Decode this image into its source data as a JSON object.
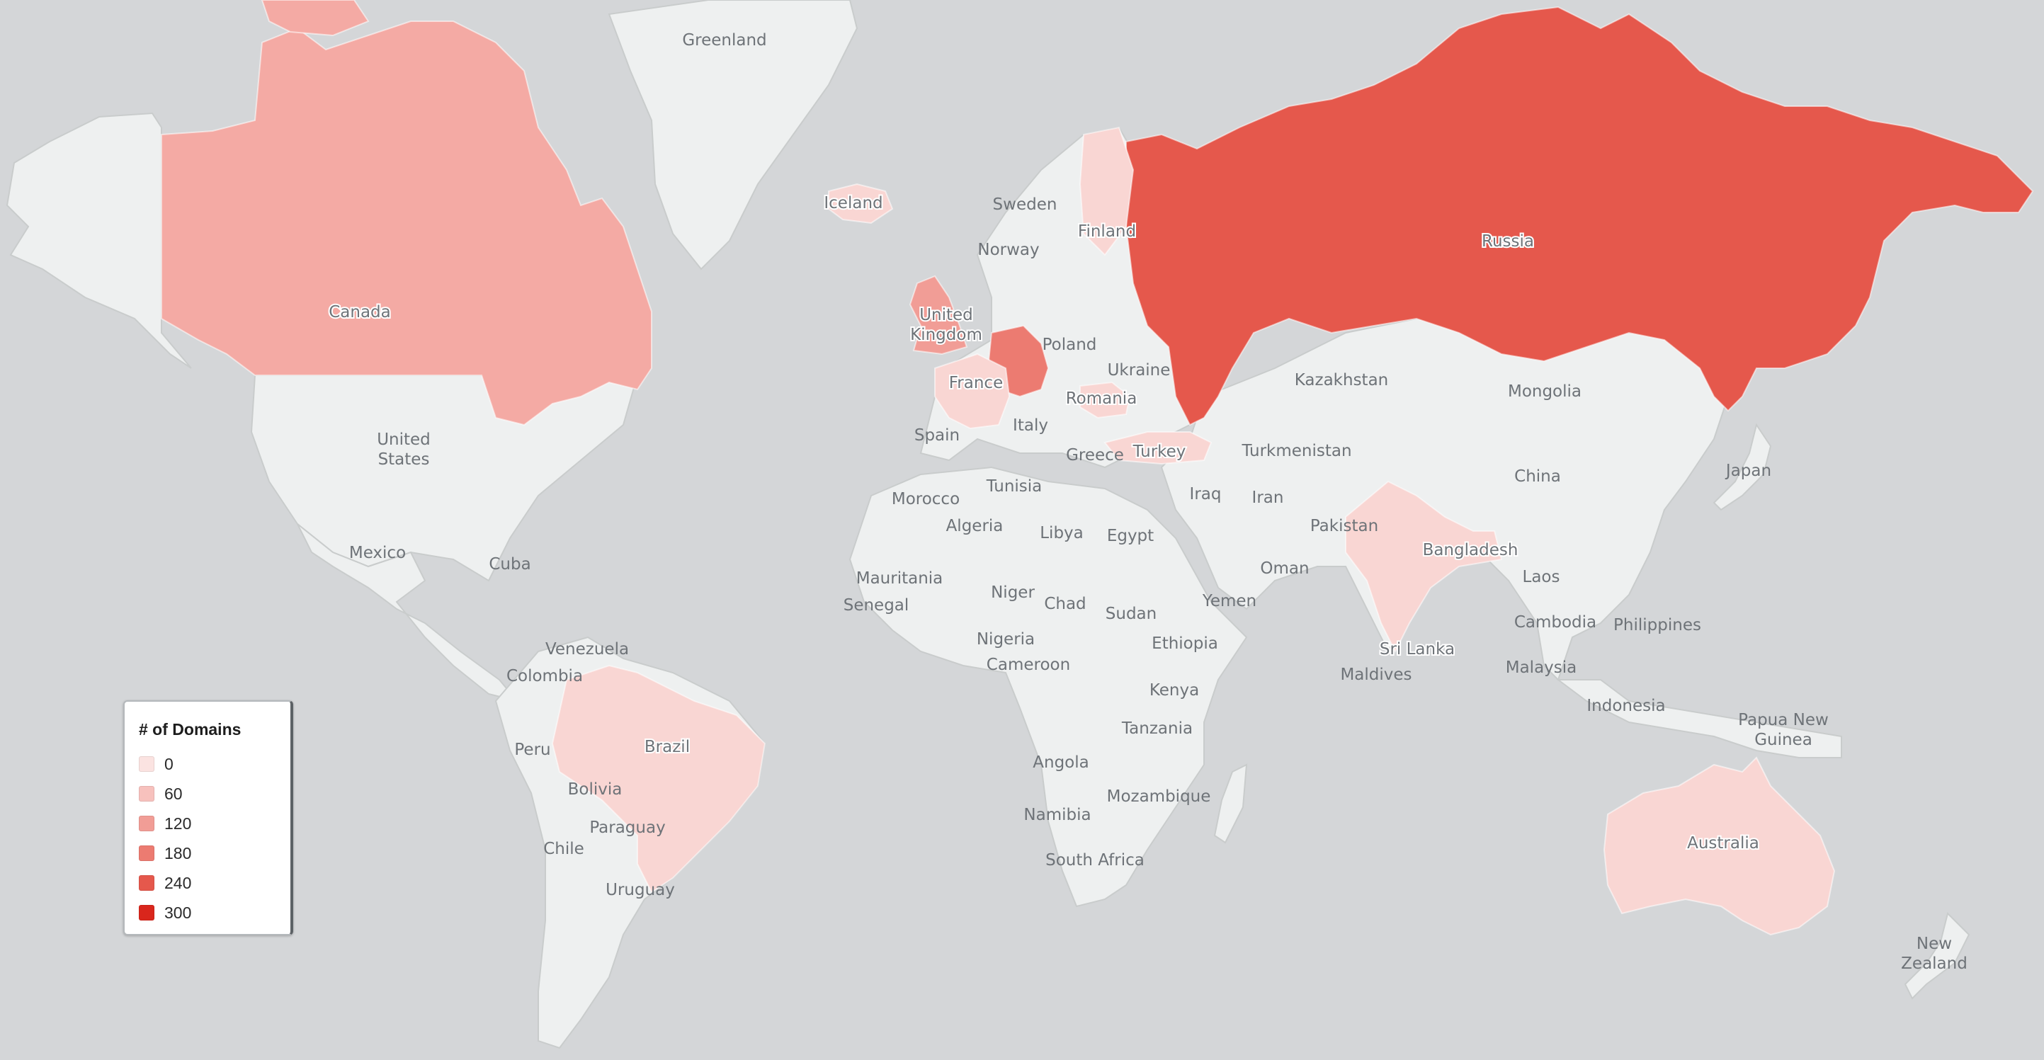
{
  "map": {
    "colors": {
      "ocean": "#d4d6d8",
      "land": "#eef0f0",
      "border": "#c9cccc",
      "label": "#6e7378",
      "scale": [
        "#fbe3e1",
        "#f7c1bd",
        "#f19d96",
        "#ec7b71",
        "#e5584c",
        "#d9261c"
      ]
    },
    "highlighted": [
      {
        "country": "Russia",
        "color": "#e5584c"
      },
      {
        "country": "Canada",
        "color": "#f4aaa4"
      },
      {
        "country": "Germany",
        "color": "#ec7b71"
      },
      {
        "country": "United Kingdom",
        "color": "#f19d96"
      },
      {
        "country": "France",
        "color": "#f9d6d3"
      },
      {
        "country": "Finland",
        "color": "#f9d6d3"
      },
      {
        "country": "Iceland",
        "color": "#f9d6d3"
      },
      {
        "country": "Romania",
        "color": "#f9d6d3"
      },
      {
        "country": "Turkey",
        "color": "#f9d6d3"
      },
      {
        "country": "India",
        "color": "#f9d6d3"
      },
      {
        "country": "Brazil",
        "color": "#f9d6d3"
      },
      {
        "country": "Australia",
        "color": "#f9d6d3"
      }
    ],
    "labels": {
      "greenland": "Greenland",
      "iceland": "Iceland",
      "sweden": "Sweden",
      "finland": "Finland",
      "norway": "Norway",
      "russia": "Russia",
      "canada": "Canada",
      "united_kingdom_1": "United",
      "united_kingdom_2": "Kingdom",
      "poland": "Poland",
      "ukraine": "Ukraine",
      "kazakhstan": "Kazakhstan",
      "mongolia": "Mongolia",
      "france": "France",
      "romania": "Romania",
      "spain": "Spain",
      "italy": "Italy",
      "greece": "Greece",
      "turkey": "Turkey",
      "turkmenistan": "Turkmenistan",
      "china": "China",
      "japan": "Japan",
      "united_states_1": "United",
      "united_states_2": "States",
      "morocco": "Morocco",
      "tunisia": "Tunisia",
      "iraq": "Iraq",
      "iran": "Iran",
      "algeria": "Algeria",
      "libya": "Libya",
      "egypt": "Egypt",
      "pakistan": "Pakistan",
      "mexico": "Mexico",
      "cuba": "Cuba",
      "bangladesh": "Bangladesh",
      "oman": "Oman",
      "mauritania": "Mauritania",
      "laos": "Laos",
      "niger": "Niger",
      "senegal": "Senegal",
      "chad": "Chad",
      "sudan": "Sudan",
      "yemen": "Yemen",
      "cambodia": "Cambodia",
      "philippines": "Philippines",
      "nigeria": "Nigeria",
      "ethiopia": "Ethiopia",
      "venezuela": "Venezuela",
      "sri_lanka": "Sri Lanka",
      "cameroon": "Cameroon",
      "malaysia": "Malaysia",
      "colombia": "Colombia",
      "maldives": "Maldives",
      "kenya": "Kenya",
      "indonesia": "Indonesia",
      "papua_1": "Papua New",
      "papua_2": "Guinea",
      "tanzania": "Tanzania",
      "brazil": "Brazil",
      "peru": "Peru",
      "angola": "Angola",
      "bolivia": "Bolivia",
      "mozambique": "Mozambique",
      "paraguay": "Paraguay",
      "namibia": "Namibia",
      "australia": "Australia",
      "chile": "Chile",
      "south_africa": "South Africa",
      "uruguay": "Uruguay",
      "new_zealand_1": "New",
      "new_zealand_2": "Zealand"
    }
  },
  "legend": {
    "title": "# of Domains",
    "items": [
      {
        "label": "0",
        "color": "#fbe3e1"
      },
      {
        "label": "60",
        "color": "#f7c1bd"
      },
      {
        "label": "120",
        "color": "#f19d96"
      },
      {
        "label": "180",
        "color": "#ec7b71"
      },
      {
        "label": "240",
        "color": "#e5584c"
      },
      {
        "label": "300",
        "color": "#d9261c"
      }
    ]
  }
}
